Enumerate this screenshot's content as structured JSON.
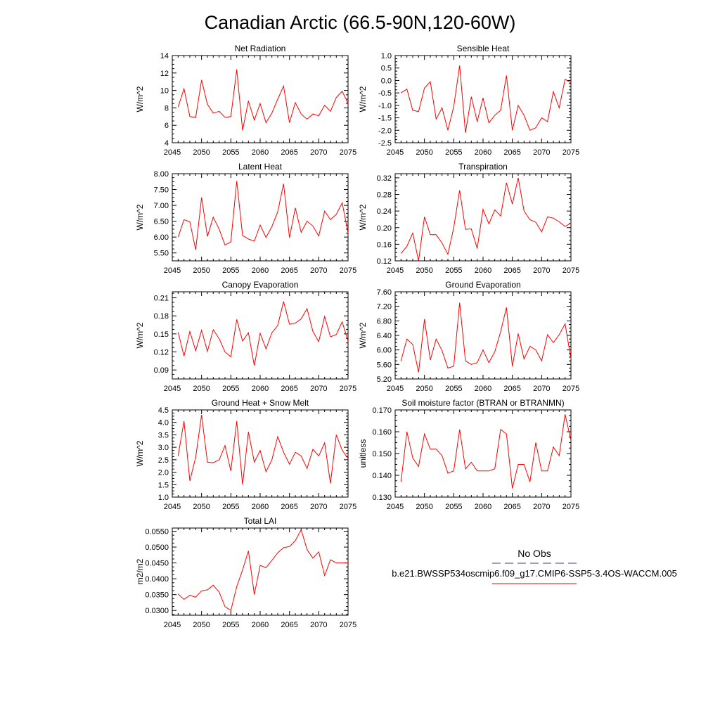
{
  "title": "Canadian Arctic (66.5-90N,120-60W)",
  "colors": {
    "series": "#ff0000",
    "obs": "#3c3c8c",
    "axis": "#000000"
  },
  "legend": {
    "obs_label": "No Obs",
    "model_label": "b.e21.BWSSP534oscmip6.f09_g17.CMIP6-SSP5-3.4OS-WACCM.005"
  },
  "chart_data": [
    {
      "type": "line",
      "title": "Net Radiation",
      "ylabel": "W/m^2",
      "xlim": [
        2045,
        2075
      ],
      "ylim": [
        4,
        14
      ],
      "xticks": [
        "2045",
        "2050",
        "2055",
        "2060",
        "2065",
        "2070",
        "2075"
      ],
      "yticks": [
        "4",
        "6",
        "8",
        "10",
        "12",
        "14"
      ],
      "x": [
        2046,
        2047,
        2048,
        2049,
        2050,
        2051,
        2052,
        2053,
        2054,
        2055,
        2056,
        2057,
        2058,
        2059,
        2060,
        2061,
        2062,
        2063,
        2064,
        2065,
        2066,
        2067,
        2068,
        2069,
        2070,
        2071,
        2072,
        2073,
        2074,
        2075
      ],
      "values": [
        8.1,
        10.2,
        7.0,
        6.9,
        11.2,
        8.4,
        7.4,
        7.6,
        6.9,
        7.0,
        12.4,
        5.4,
        8.8,
        6.6,
        8.5,
        6.3,
        7.4,
        9.0,
        10.5,
        6.3,
        8.6,
        7.3,
        6.7,
        7.3,
        7.1,
        8.3,
        7.6,
        9.2,
        9.9,
        8.5
      ]
    },
    {
      "type": "line",
      "title": "Sensible Heat",
      "ylabel": "W/m^2",
      "xlim": [
        2045,
        2075
      ],
      "ylim": [
        -2.5,
        1.0
      ],
      "xticks": [
        "2045",
        "2050",
        "2055",
        "2060",
        "2065",
        "2070",
        "2075"
      ],
      "yticks": [
        "-2.5",
        "-2.0",
        "-1.5",
        "-1.0",
        "-0.5",
        "0.0",
        "0.5",
        "1.0"
      ],
      "x": [
        2046,
        2047,
        2048,
        2049,
        2050,
        2051,
        2052,
        2053,
        2054,
        2055,
        2056,
        2057,
        2058,
        2059,
        2060,
        2061,
        2062,
        2063,
        2064,
        2065,
        2066,
        2067,
        2068,
        2069,
        2070,
        2071,
        2072,
        2073,
        2074,
        2075
      ],
      "values": [
        -0.5,
        -0.35,
        -1.2,
        -1.25,
        -0.3,
        -0.05,
        -1.55,
        -1.1,
        -2.0,
        -1.05,
        0.6,
        -2.1,
        -0.65,
        -1.65,
        -0.7,
        -1.7,
        -1.4,
        -1.2,
        0.2,
        -2.0,
        -1.0,
        -1.4,
        -2.0,
        -1.9,
        -1.5,
        -1.65,
        -0.45,
        -1.1,
        0.05,
        -0.1
      ]
    },
    {
      "type": "line",
      "title": "Latent Heat",
      "ylabel": "W/m^2",
      "xlim": [
        2045,
        2075
      ],
      "ylim": [
        5.25,
        8.0
      ],
      "xticks": [
        "2045",
        "2050",
        "2055",
        "2060",
        "2065",
        "2070",
        "2075"
      ],
      "yticks": [
        "5.50",
        "6.00",
        "6.50",
        "7.00",
        "7.50",
        "8.00"
      ],
      "x": [
        2046,
        2047,
        2048,
        2049,
        2050,
        2051,
        2052,
        2053,
        2054,
        2055,
        2056,
        2057,
        2058,
        2059,
        2060,
        2061,
        2062,
        2063,
        2064,
        2065,
        2066,
        2067,
        2068,
        2069,
        2070,
        2071,
        2072,
        2073,
        2074,
        2075
      ],
      "values": [
        6.0,
        6.55,
        6.48,
        5.6,
        7.25,
        6.02,
        6.63,
        6.25,
        5.75,
        5.85,
        7.77,
        6.05,
        5.94,
        5.87,
        6.38,
        5.99,
        6.33,
        6.8,
        7.68,
        5.98,
        6.92,
        6.15,
        6.5,
        6.35,
        6.03,
        6.82,
        6.55,
        6.72,
        7.08,
        6.13
      ]
    },
    {
      "type": "line",
      "title": "Transpiration",
      "ylabel": "W/m^2",
      "xlim": [
        2045,
        2075
      ],
      "ylim": [
        0.12,
        0.33
      ],
      "xticks": [
        "2045",
        "2050",
        "2055",
        "2060",
        "2065",
        "2070",
        "2075"
      ],
      "yticks": [
        "0.12",
        "0.16",
        "0.20",
        "0.24",
        "0.28",
        "0.32"
      ],
      "x": [
        2046,
        2047,
        2048,
        2049,
        2050,
        2051,
        2052,
        2053,
        2054,
        2055,
        2056,
        2057,
        2058,
        2059,
        2060,
        2061,
        2062,
        2063,
        2064,
        2065,
        2066,
        2067,
        2068,
        2069,
        2070,
        2071,
        2072,
        2073,
        2074,
        2075
      ],
      "values": [
        0.138,
        0.155,
        0.187,
        0.12,
        0.226,
        0.183,
        0.183,
        0.163,
        0.136,
        0.2,
        0.29,
        0.196,
        0.197,
        0.15,
        0.244,
        0.209,
        0.243,
        0.228,
        0.308,
        0.257,
        0.32,
        0.24,
        0.219,
        0.213,
        0.19,
        0.226,
        0.223,
        0.214,
        0.203,
        0.211
      ]
    },
    {
      "type": "line",
      "title": "Canopy Evaporation",
      "ylabel": "W/m^2",
      "xlim": [
        2045,
        2075
      ],
      "ylim": [
        0.075,
        0.22
      ],
      "xticks": [
        "2045",
        "2050",
        "2055",
        "2060",
        "2065",
        "2070",
        "2075"
      ],
      "yticks": [
        "0.09",
        "0.12",
        "0.15",
        "0.18",
        "0.21"
      ],
      "x": [
        2046,
        2047,
        2048,
        2049,
        2050,
        2051,
        2052,
        2053,
        2054,
        2055,
        2056,
        2057,
        2058,
        2059,
        2060,
        2061,
        2062,
        2063,
        2064,
        2065,
        2066,
        2067,
        2068,
        2069,
        2070,
        2071,
        2072,
        2073,
        2074,
        2075
      ],
      "values": [
        0.153,
        0.113,
        0.154,
        0.122,
        0.156,
        0.121,
        0.157,
        0.142,
        0.12,
        0.112,
        0.174,
        0.138,
        0.152,
        0.097,
        0.151,
        0.125,
        0.152,
        0.164,
        0.204,
        0.166,
        0.168,
        0.175,
        0.192,
        0.154,
        0.137,
        0.179,
        0.145,
        0.149,
        0.17,
        0.138
      ]
    },
    {
      "type": "line",
      "title": "Ground Evaporation",
      "ylabel": "W/m^2",
      "xlim": [
        2045,
        2075
      ],
      "ylim": [
        5.2,
        7.6
      ],
      "xticks": [
        "2045",
        "2050",
        "2055",
        "2060",
        "2065",
        "2070",
        "2075"
      ],
      "yticks": [
        "5.20",
        "5.60",
        "6.00",
        "6.40",
        "6.80",
        "7.20",
        "7.60"
      ],
      "x": [
        2046,
        2047,
        2048,
        2049,
        2050,
        2051,
        2052,
        2053,
        2054,
        2055,
        2056,
        2057,
        2058,
        2059,
        2060,
        2061,
        2062,
        2063,
        2064,
        2065,
        2066,
        2067,
        2068,
        2069,
        2070,
        2071,
        2072,
        2073,
        2074,
        2075
      ],
      "values": [
        5.7,
        6.3,
        6.15,
        5.38,
        6.85,
        5.72,
        6.3,
        5.98,
        5.5,
        5.55,
        7.3,
        5.7,
        5.6,
        5.65,
        6.0,
        5.65,
        5.95,
        6.5,
        7.17,
        5.55,
        6.45,
        5.75,
        6.1,
        6.0,
        5.7,
        6.42,
        6.2,
        6.42,
        6.72,
        5.75
      ]
    },
    {
      "type": "line",
      "title": "Ground Heat + Snow Melt",
      "ylabel": "W/m^2",
      "xlim": [
        2045,
        2075
      ],
      "ylim": [
        1.0,
        4.5
      ],
      "xticks": [
        "2045",
        "2050",
        "2055",
        "2060",
        "2065",
        "2070",
        "2075"
      ],
      "yticks": [
        "1.0",
        "1.5",
        "2.0",
        "2.5",
        "3.0",
        "3.5",
        "4.0",
        "4.5"
      ],
      "x": [
        2046,
        2047,
        2048,
        2049,
        2050,
        2051,
        2052,
        2053,
        2054,
        2055,
        2056,
        2057,
        2058,
        2059,
        2060,
        2061,
        2062,
        2063,
        2064,
        2065,
        2066,
        2067,
        2068,
        2069,
        2070,
        2071,
        2072,
        2073,
        2074,
        2075
      ],
      "values": [
        2.65,
        4.05,
        1.65,
        2.6,
        4.3,
        2.4,
        2.38,
        2.5,
        3.07,
        2.05,
        4.05,
        1.5,
        3.62,
        2.4,
        2.87,
        2.02,
        2.5,
        3.43,
        2.8,
        2.32,
        2.8,
        2.65,
        2.15,
        2.92,
        2.65,
        3.18,
        1.55,
        3.5,
        2.88,
        2.55
      ]
    },
    {
      "type": "line",
      "title": "Soil moisture factor (BTRAN or BTRANMN)",
      "ylabel": "unitless",
      "xlim": [
        2045,
        2075
      ],
      "ylim": [
        0.13,
        0.17
      ],
      "xticks": [
        "2045",
        "2050",
        "2055",
        "2060",
        "2065",
        "2070",
        "2075"
      ],
      "yticks": [
        "0.130",
        "0.140",
        "0.150",
        "0.160",
        "0.170"
      ],
      "x": [
        2046,
        2047,
        2048,
        2049,
        2050,
        2051,
        2052,
        2053,
        2054,
        2055,
        2056,
        2057,
        2058,
        2059,
        2060,
        2061,
        2062,
        2063,
        2064,
        2065,
        2066,
        2067,
        2068,
        2069,
        2070,
        2071,
        2072,
        2073,
        2074,
        2075
      ],
      "values": [
        0.137,
        0.16,
        0.148,
        0.144,
        0.159,
        0.152,
        0.152,
        0.149,
        0.141,
        0.142,
        0.161,
        0.143,
        0.146,
        0.142,
        0.142,
        0.142,
        0.143,
        0.161,
        0.159,
        0.134,
        0.145,
        0.145,
        0.137,
        0.155,
        0.142,
        0.142,
        0.153,
        0.149,
        0.168,
        0.156
      ]
    },
    {
      "type": "line",
      "title": "Total LAI",
      "ylabel": "m2/m2",
      "xlim": [
        2045,
        2075
      ],
      "ylim": [
        0.0285,
        0.056
      ],
      "xticks": [
        "2045",
        "2050",
        "2055",
        "2060",
        "2065",
        "2070",
        "2075"
      ],
      "yticks": [
        "0.0300",
        "0.0350",
        "0.0400",
        "0.0450",
        "0.0500",
        "0.0550"
      ],
      "x": [
        2046,
        2047,
        2048,
        2049,
        2050,
        2051,
        2052,
        2053,
        2054,
        2055,
        2056,
        2057,
        2058,
        2059,
        2060,
        2061,
        2062,
        2063,
        2064,
        2065,
        2066,
        2067,
        2068,
        2069,
        2070,
        2071,
        2072,
        2073,
        2074,
        2075
      ],
      "values": [
        0.0352,
        0.0335,
        0.0348,
        0.0342,
        0.0362,
        0.0365,
        0.038,
        0.0358,
        0.0312,
        0.03,
        0.0375,
        0.0428,
        0.0488,
        0.035,
        0.0442,
        0.0435,
        0.0458,
        0.0482,
        0.0498,
        0.0502,
        0.052,
        0.0555,
        0.0492,
        0.0465,
        0.0485,
        0.041,
        0.046,
        0.045,
        0.045,
        0.045
      ]
    }
  ]
}
